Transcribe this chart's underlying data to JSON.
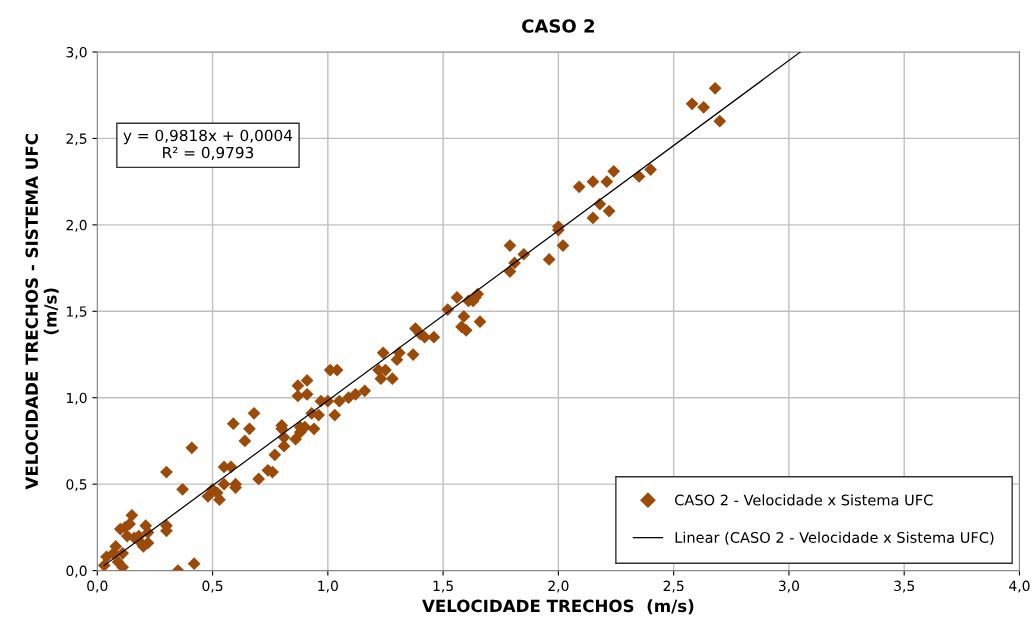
{
  "chart_data": {
    "type": "scatter",
    "title": "CASO 2",
    "xlabel": "VELOCIDADE TRECHOS  (m/s)",
    "ylabel": "VELOCIDADE TRECHOS - SISTEMA UFC\n(m/s)",
    "annotations": [
      "y = 0,9818x + 0,0004\nR² = 0,9793"
    ],
    "xlim": [
      0,
      4
    ],
    "ylim": [
      0,
      3
    ],
    "xticks": [
      {
        "value": 0,
        "label": "0,0"
      },
      {
        "value": 0.5,
        "label": "0,5"
      },
      {
        "value": 1,
        "label": "1,0"
      },
      {
        "value": 1.5,
        "label": "1,5"
      },
      {
        "value": 2,
        "label": "2,0"
      },
      {
        "value": 2.5,
        "label": "2,5"
      },
      {
        "value": 3,
        "label": "3,0"
      },
      {
        "value": 3.5,
        "label": "3,5"
      },
      {
        "value": 4,
        "label": "4,0"
      }
    ],
    "yticks": [
      {
        "value": 0,
        "label": "0,0"
      },
      {
        "value": 0.5,
        "label": "0,5"
      },
      {
        "value": 1,
        "label": "1,0"
      },
      {
        "value": 1.5,
        "label": "1,5"
      },
      {
        "value": 2,
        "label": "2,0"
      },
      {
        "value": 2.5,
        "label": "2,5"
      },
      {
        "value": 3,
        "label": "3,0"
      }
    ],
    "grid": true,
    "legend": "bottom right",
    "series": [
      {
        "name": "CASO 2 - Velocidade x Sistema UFC",
        "marker": "diamond",
        "color": "#9c4a08",
        "x": [
          0.03,
          0.04,
          0.07,
          0.08,
          0.09,
          0.1,
          0.11,
          0.11,
          0.12,
          0.13,
          0.14,
          0.15,
          0.16,
          0.18,
          0.19,
          0.2,
          0.21,
          0.22,
          0.22,
          0.3,
          0.3,
          0.3,
          0.35,
          0.37,
          0.41,
          0.42,
          0.48,
          0.5,
          0.52,
          0.53,
          0.55,
          0.55,
          0.58,
          0.59,
          0.6,
          0.6,
          0.64,
          0.66,
          0.68,
          0.7,
          0.74,
          0.76,
          0.77,
          0.8,
          0.8,
          0.81,
          0.81,
          0.86,
          0.87,
          0.87,
          0.88,
          0.88,
          0.9,
          0.91,
          0.91,
          0.93,
          0.94,
          0.96,
          0.97,
          1.0,
          1.01,
          1.03,
          1.04,
          1.05,
          1.09,
          1.12,
          1.16,
          1.22,
          1.23,
          1.24,
          1.25,
          1.28,
          1.3,
          1.31,
          1.37,
          1.38,
          1.4,
          1.42,
          1.46,
          1.52,
          1.56,
          1.58,
          1.59,
          1.6,
          1.61,
          1.63,
          1.64,
          1.65,
          1.66,
          1.79,
          1.79,
          1.81,
          1.85,
          1.96,
          2.0,
          2.0,
          2.02,
          2.09,
          2.15,
          2.15,
          2.18,
          2.21,
          2.22,
          2.24,
          2.35,
          2.4,
          2.58,
          2.63,
          2.68,
          2.7
        ],
        "values": [
          0.03,
          0.08,
          0.1,
          0.14,
          0.05,
          0.24,
          0.02,
          0.1,
          0.25,
          0.2,
          0.27,
          0.32,
          0.19,
          0.2,
          0.16,
          0.14,
          0.26,
          0.22,
          0.16,
          0.57,
          0.26,
          0.23,
          0.0,
          0.47,
          0.71,
          0.04,
          0.43,
          0.47,
          0.45,
          0.41,
          0.5,
          0.6,
          0.6,
          0.85,
          0.5,
          0.48,
          0.75,
          0.82,
          0.91,
          0.53,
          0.58,
          0.57,
          0.67,
          0.84,
          0.82,
          0.72,
          0.77,
          0.76,
          1.01,
          1.07,
          0.8,
          0.83,
          0.83,
          1.1,
          1.02,
          0.91,
          0.82,
          0.9,
          0.98,
          0.98,
          1.16,
          0.9,
          1.16,
          0.98,
          1.0,
          1.02,
          1.04,
          1.16,
          1.11,
          1.26,
          1.16,
          1.11,
          1.22,
          1.26,
          1.25,
          1.4,
          1.37,
          1.35,
          1.35,
          1.51,
          1.58,
          1.41,
          1.47,
          1.39,
          1.56,
          1.56,
          1.58,
          1.6,
          1.44,
          1.88,
          1.73,
          1.78,
          1.83,
          1.8,
          1.97,
          1.99,
          1.88,
          2.22,
          2.25,
          2.04,
          2.12,
          2.25,
          2.08,
          2.31,
          2.28,
          2.32,
          2.7,
          2.68,
          2.79,
          2.6
        ]
      },
      {
        "name": "Linear (CASO 2 - Velocidade x Sistema UFC)",
        "type": "line",
        "line_style": "solid",
        "marker": "none",
        "color": "#000000",
        "x": [
          0.03,
          3.05
        ],
        "values": [
          0.03,
          3.0
        ]
      }
    ]
  }
}
